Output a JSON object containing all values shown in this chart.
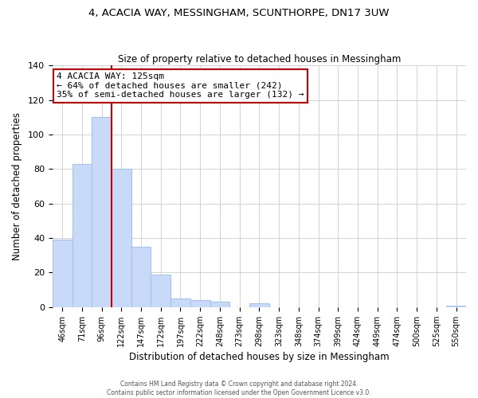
{
  "title": "4, ACACIA WAY, MESSINGHAM, SCUNTHORPE, DN17 3UW",
  "subtitle": "Size of property relative to detached houses in Messingham",
  "xlabel": "Distribution of detached houses by size in Messingham",
  "ylabel": "Number of detached properties",
  "bar_labels": [
    "46sqm",
    "71sqm",
    "96sqm",
    "122sqm",
    "147sqm",
    "172sqm",
    "197sqm",
    "222sqm",
    "248sqm",
    "273sqm",
    "298sqm",
    "323sqm",
    "348sqm",
    "374sqm",
    "399sqm",
    "424sqm",
    "449sqm",
    "474sqm",
    "500sqm",
    "525sqm",
    "550sqm"
  ],
  "bar_values": [
    39,
    83,
    110,
    80,
    35,
    19,
    5,
    4,
    3,
    0,
    2,
    0,
    0,
    0,
    0,
    0,
    0,
    0,
    0,
    0,
    1
  ],
  "bar_color": "#c9daf8",
  "bar_edge_color": "#a4c2f4",
  "vline_x": 2.5,
  "vline_color": "#cc0000",
  "annotation_line1": "4 ACACIA WAY: 125sqm",
  "annotation_line2": "← 64% of detached houses are smaller (242)",
  "annotation_line3": "35% of semi-detached houses are larger (132) →",
  "annotation_box_color": "#ffffff",
  "annotation_box_edge": "#cc0000",
  "ylim": [
    0,
    140
  ],
  "yticks": [
    0,
    20,
    40,
    60,
    80,
    100,
    120,
    140
  ],
  "footer_line1": "Contains HM Land Registry data © Crown copyright and database right 2024.",
  "footer_line2": "Contains public sector information licensed under the Open Government Licence v3.0.",
  "background_color": "#ffffff",
  "grid_color": "#cccccc"
}
